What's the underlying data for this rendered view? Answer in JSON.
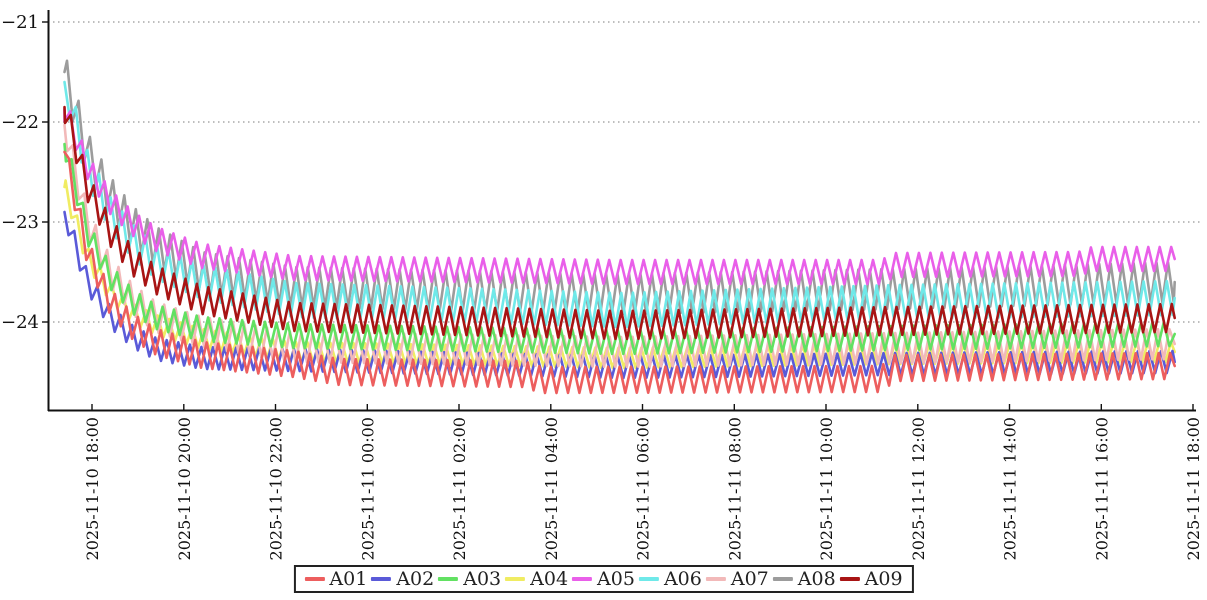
{
  "chart_data": {
    "type": "line",
    "title": "",
    "xlabel": "",
    "ylabel": "",
    "grid": "horizontal-dotted",
    "legend_position": "bottom-center",
    "y_axis": {
      "tick_values": [
        -21,
        -22,
        -23,
        -24
      ],
      "tick_labels": [
        "−21",
        "−22",
        "−23",
        "−24"
      ],
      "range": [
        -24.9,
        -20.88
      ]
    },
    "x_axis": {
      "tick_hours": [
        0.5,
        2.5,
        4.5,
        6.5,
        8.5,
        10.5,
        12.5,
        14.5,
        16.5,
        18.5,
        20.5,
        22.5,
        24.5
      ],
      "tick_labels": [
        "2025-11-10 18:00",
        "2025-11-10 20:00",
        "2025-11-10 22:00",
        "2025-11-11 00:00",
        "2025-11-11 02:00",
        "2025-11-11 04:00",
        "2025-11-11 06:00",
        "2025-11-11 08:00",
        "2025-11-11 10:00",
        "2025-11-11 12:00",
        "2025-11-11 14:00",
        "2025-11-11 16:00",
        "2025-11-11 18:00"
      ],
      "data_hour_range": [
        -0.1,
        24.1
      ]
    },
    "oscillation_note_period_minutes": 15,
    "series": [
      {
        "name": "A01",
        "color": "#ed5e5e",
        "amp": 0.13,
        "period_hours": 0.25,
        "phase": 0.0,
        "keypoints": [
          [
            -0.1,
            -22.3
          ],
          [
            0.4,
            -23.3
          ],
          [
            0.9,
            -23.8
          ],
          [
            1.4,
            -24.05
          ],
          [
            1.9,
            -24.2
          ],
          [
            2.9,
            -24.33
          ],
          [
            4.9,
            -24.42
          ],
          [
            5.9,
            -24.5
          ],
          [
            9.9,
            -24.52
          ],
          [
            10.3,
            -24.58
          ],
          [
            17.7,
            -24.57
          ],
          [
            18.0,
            -24.46
          ],
          [
            24.1,
            -24.44
          ]
        ]
      },
      {
        "name": "A02",
        "color": "#5a5ad8",
        "amp": 0.11,
        "period_hours": 0.252,
        "phase": 0.45,
        "keypoints": [
          [
            -0.1,
            -22.9
          ],
          [
            0.4,
            -23.6
          ],
          [
            0.9,
            -23.95
          ],
          [
            1.4,
            -24.15
          ],
          [
            1.9,
            -24.27
          ],
          [
            2.9,
            -24.36
          ],
          [
            4.9,
            -24.38
          ],
          [
            12.0,
            -24.45
          ],
          [
            18.0,
            -24.42
          ],
          [
            24.1,
            -24.4
          ]
        ]
      },
      {
        "name": "A03",
        "color": "#62e162",
        "amp": 0.12,
        "period_hours": 0.248,
        "phase": 0.22,
        "keypoints": [
          [
            -0.1,
            -22.22
          ],
          [
            0.4,
            -23.1
          ],
          [
            0.9,
            -23.55
          ],
          [
            1.4,
            -23.8
          ],
          [
            1.9,
            -23.95
          ],
          [
            2.9,
            -24.07
          ],
          [
            4.9,
            -24.14
          ],
          [
            12.0,
            -24.2
          ],
          [
            18.0,
            -24.16
          ],
          [
            24.1,
            -24.12
          ]
        ]
      },
      {
        "name": "A04",
        "color": "#f0ec62",
        "amp": 0.1,
        "period_hours": 0.251,
        "phase": 0.7,
        "keypoints": [
          [
            -0.1,
            -22.65
          ],
          [
            0.4,
            -23.35
          ],
          [
            0.9,
            -23.7
          ],
          [
            1.4,
            -23.92
          ],
          [
            1.9,
            -24.03
          ],
          [
            2.9,
            -24.17
          ],
          [
            4.9,
            -24.3
          ],
          [
            12.0,
            -24.36
          ],
          [
            18.0,
            -24.32
          ],
          [
            24.1,
            -24.3
          ]
        ]
      },
      {
        "name": "A05",
        "color": "#e95fe9",
        "amp": 0.12,
        "period_hours": 0.25,
        "phase": 0.1,
        "keypoints": [
          [
            -0.1,
            -21.87
          ],
          [
            0.4,
            -22.45
          ],
          [
            0.9,
            -22.8
          ],
          [
            1.4,
            -23.02
          ],
          [
            1.9,
            -23.17
          ],
          [
            2.9,
            -23.34
          ],
          [
            4.9,
            -23.46
          ],
          [
            12.0,
            -23.5
          ],
          [
            17.7,
            -23.5
          ],
          [
            18.0,
            -23.43
          ],
          [
            22.0,
            -23.42
          ],
          [
            22.3,
            -23.37
          ],
          [
            24.1,
            -23.37
          ]
        ]
      },
      {
        "name": "A06",
        "color": "#6fe9e9",
        "amp": 0.17,
        "period_hours": 0.253,
        "phase": 0.58,
        "keypoints": [
          [
            -0.1,
            -21.6
          ],
          [
            0.4,
            -22.45
          ],
          [
            0.9,
            -22.92
          ],
          [
            1.4,
            -23.2
          ],
          [
            1.9,
            -23.4
          ],
          [
            2.9,
            -23.6
          ],
          [
            4.9,
            -23.78
          ],
          [
            12.0,
            -23.88
          ],
          [
            18.0,
            -23.8
          ],
          [
            24.1,
            -23.76
          ]
        ]
      },
      {
        "name": "A07",
        "color": "#f2b9b9",
        "amp": 0.15,
        "period_hours": 0.249,
        "phase": 0.33,
        "keypoints": [
          [
            -0.1,
            -22.03
          ],
          [
            0.4,
            -23.0
          ],
          [
            0.9,
            -23.5
          ],
          [
            1.4,
            -23.78
          ],
          [
            1.9,
            -23.95
          ],
          [
            2.9,
            -24.1
          ],
          [
            4.9,
            -24.25
          ],
          [
            12.0,
            -24.3
          ],
          [
            18.0,
            -24.26
          ],
          [
            24.1,
            -24.22
          ]
        ]
      },
      {
        "name": "A08",
        "color": "#9c9c9c",
        "amp": 0.2,
        "period_hours": 0.25,
        "phase": 0.82,
        "keypoints": [
          [
            -0.1,
            -21.5
          ],
          [
            0.4,
            -22.3
          ],
          [
            0.9,
            -22.75
          ],
          [
            1.4,
            -23.05
          ],
          [
            1.9,
            -23.25
          ],
          [
            2.9,
            -23.5
          ],
          [
            4.9,
            -23.65
          ],
          [
            12.0,
            -23.72
          ],
          [
            18.0,
            -23.67
          ],
          [
            24.1,
            -23.6
          ]
        ]
      },
      {
        "name": "A09",
        "color": "#a81414",
        "amp": 0.14,
        "period_hours": 0.25,
        "phase": 0.15,
        "keypoints": [
          [
            -0.1,
            -21.85
          ],
          [
            0.4,
            -22.65
          ],
          [
            0.9,
            -23.1
          ],
          [
            1.4,
            -23.4
          ],
          [
            1.9,
            -23.58
          ],
          [
            2.9,
            -23.78
          ],
          [
            4.9,
            -23.95
          ],
          [
            12.0,
            -24.03
          ],
          [
            18.0,
            -23.99
          ],
          [
            24.1,
            -23.96
          ]
        ]
      }
    ]
  }
}
